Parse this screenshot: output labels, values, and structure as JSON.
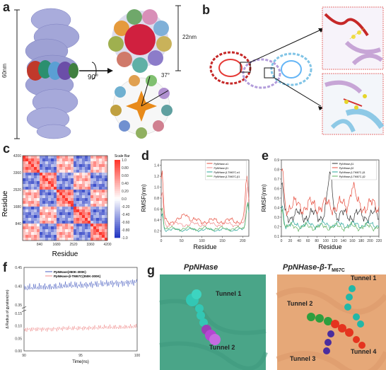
{
  "panels": {
    "a": {
      "letter": "a",
      "dim_left": "60nm",
      "dim_right": "22nm",
      "rotation": "90°",
      "angle": "37°"
    },
    "b": {
      "letter": "b"
    },
    "c": {
      "letter": "c",
      "xlabel": "Residue",
      "ylabel": "Residue",
      "scale_title": "Scale Bar",
      "ticks": [
        "840",
        "1680",
        "2520",
        "3360",
        "4200"
      ],
      "scale_ticks": [
        "1.0",
        "0.80",
        "0.60",
        "0.40",
        "0.20",
        "0.0",
        "-0.20",
        "-0.40",
        "-0.60",
        "-0.80",
        "-1.0"
      ]
    },
    "d": {
      "letter": "d",
      "xlabel": "Residue",
      "ylabel": "RMSF(nm)",
      "legend": [
        "PpNHase-α1",
        "PpNHase-β1",
        "PpNHase-β-TM67C-α1",
        "PpNHase-β-TM67C-β1"
      ],
      "xticks": [
        "0",
        "50",
        "100",
        "150",
        "200"
      ],
      "yticks": [
        "0.2",
        "0.4",
        "0.6",
        "0.8",
        "1.0",
        "1.2",
        "1.4"
      ]
    },
    "e": {
      "letter": "e",
      "xlabel": "Residue",
      "ylabel": "RMSF(nm)",
      "legend": [
        "PpNHase-β1",
        "PpNHase-β2",
        "PpNHase-β-TM67C-β1",
        "PpNHase-β-TM67C-β2"
      ],
      "xticks": [
        "0",
        "20",
        "40",
        "60",
        "80",
        "100",
        "120",
        "140",
        "160",
        "180",
        "200",
        "220"
      ],
      "yticks": [
        "0.1",
        "0.2",
        "0.3",
        "0.4",
        "0.5",
        "0.6",
        "0.7",
        "0.8",
        "0.9"
      ]
    },
    "f": {
      "letter": "f",
      "xlabel": "Time(ns)",
      "ylabel": "Δ Radius of gyration(nm)",
      "legend": [
        "PpNHase(350K-300K)",
        "PpNHase-β-TM67C(350K-300K)"
      ],
      "xticks": [
        "90",
        "95",
        "100"
      ],
      "yticks_top": [
        "0.35",
        "0.40",
        "0.45"
      ],
      "yticks_bottom": [
        "0.00",
        "0.05",
        "0.10",
        "0.15"
      ]
    },
    "g": {
      "letter": "g",
      "left_title": "PpNHase",
      "right_title_main": "PpNHase-β-T",
      "right_title_sub": "M67C",
      "tunnels_left": [
        "Tunnel 1",
        "Tunnel 2"
      ],
      "tunnels_right": [
        "Tunnel 1",
        "Tunnel 2",
        "Tunnel 3",
        "Tunnel 4"
      ]
    }
  },
  "colors": {
    "protein": "#9fa3d6",
    "red_line": "#e74c3c",
    "blue_line": "#4a5fc1",
    "teal_line": "#2aa79b",
    "green_line": "#5fb05f",
    "pink_line": "#f08a8a",
    "left_bg": "#3d9d84",
    "right_bg": "#e2a672"
  }
}
